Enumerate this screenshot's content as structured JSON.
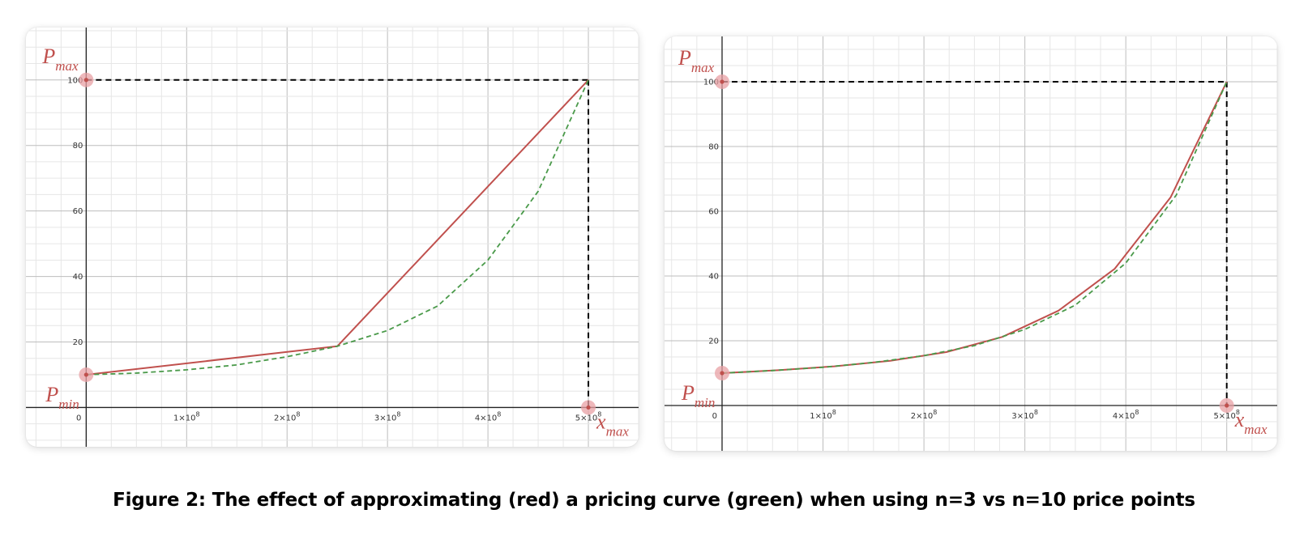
{
  "caption": "Figure 2: The effect of approximating (red) a pricing curve (green) when using n=3 vs n=10 price points",
  "colors": {
    "approximation": "#c0504d",
    "curve": "#4a9a4a",
    "bounds": "#000000",
    "point_marker": "#e8a0a4",
    "grid_major": "#bdbdbd",
    "grid_minor": "#e6e6e6",
    "axis": "#222222"
  },
  "labels": {
    "pmax_main": "P",
    "pmax_sub": "max",
    "pmin_main": "P",
    "pmin_sub": "min",
    "xmax_main": "x",
    "xmax_sub": "max"
  },
  "chart_data": [
    {
      "type": "line",
      "title": "",
      "xlabel": "",
      "ylabel": "",
      "grid": true,
      "x_ticks": [
        {
          "value": 0,
          "label": "0",
          "sup": ""
        },
        {
          "value": 100000000,
          "label": "1×10",
          "sup": "8"
        },
        {
          "value": 200000000,
          "label": "2×10",
          "sup": "8"
        },
        {
          "value": 300000000,
          "label": "3×10",
          "sup": "8"
        },
        {
          "value": 400000000,
          "label": "4×10",
          "sup": "8"
        },
        {
          "value": 500000000,
          "label": "5×10",
          "sup": "8"
        }
      ],
      "y_ticks": [
        {
          "value": 20,
          "label": "20"
        },
        {
          "value": 40,
          "label": "40"
        },
        {
          "value": 60,
          "label": "60"
        },
        {
          "value": 80,
          "label": "80"
        },
        {
          "value": 100,
          "label": "100"
        }
      ],
      "xlim": [
        -60000000,
        550000000
      ],
      "ylim": [
        -12,
        116
      ],
      "p_min": 10,
      "p_max": 100,
      "x_max": 500000000,
      "series": [
        {
          "style": "solid",
          "x": [
            0,
            250000000,
            500000000
          ],
          "y": [
            10,
            18.7,
            100
          ]
        },
        {
          "style": "dashed",
          "x": [
            0,
            50000000,
            100000000,
            150000000,
            200000000,
            250000000,
            300000000,
            350000000,
            400000000,
            450000000,
            500000000
          ],
          "y": [
            10,
            10.5,
            11.5,
            13,
            15.5,
            18.7,
            23.5,
            31,
            45,
            66,
            100
          ]
        }
      ]
    },
    {
      "type": "line",
      "title": "",
      "xlabel": "",
      "ylabel": "",
      "grid": true,
      "x_ticks": [
        {
          "value": 0,
          "label": "0",
          "sup": ""
        },
        {
          "value": 100000000,
          "label": "1×10",
          "sup": "8"
        },
        {
          "value": 200000000,
          "label": "2×10",
          "sup": "8"
        },
        {
          "value": 300000000,
          "label": "3×10",
          "sup": "8"
        },
        {
          "value": 400000000,
          "label": "4×10",
          "sup": "8"
        },
        {
          "value": 500000000,
          "label": "5×10",
          "sup": "8"
        }
      ],
      "y_ticks": [
        {
          "value": 20,
          "label": "20"
        },
        {
          "value": 40,
          "label": "40"
        },
        {
          "value": 60,
          "label": "60"
        },
        {
          "value": 80,
          "label": "80"
        },
        {
          "value": 100,
          "label": "100"
        }
      ],
      "xlim": [
        -57000000,
        550000000
      ],
      "ylim": [
        -14,
        114
      ],
      "p_min": 10,
      "p_max": 100,
      "x_max": 500000000,
      "series": [
        {
          "style": "solid",
          "x": [
            0,
            55600000,
            111100000,
            166700000,
            222200000,
            277800000,
            333300000,
            388900000,
            444400000,
            500000000
          ],
          "y": [
            10,
            10.9,
            12.1,
            13.8,
            16.5,
            21.2,
            29.3,
            42.2,
            64.3,
            100
          ]
        },
        {
          "style": "dashed",
          "x": [
            0,
            50000000,
            100000000,
            150000000,
            200000000,
            250000000,
            300000000,
            350000000,
            400000000,
            450000000,
            500000000
          ],
          "y": [
            10,
            10.8,
            11.8,
            13.3,
            15.4,
            18.5,
            23.5,
            31,
            44,
            65,
            100
          ]
        }
      ]
    }
  ]
}
